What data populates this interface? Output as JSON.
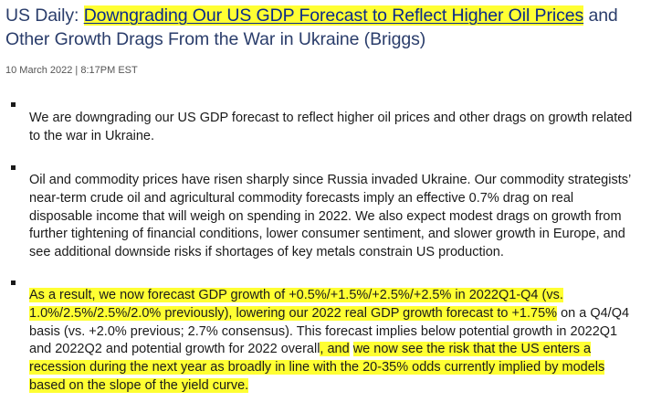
{
  "title": {
    "prefix": "US Daily: ",
    "highlighted": "Downgrading Our US GDP Forecast to Reflect Higher Oil Prices",
    "suffix": " and Other Growth Drags From the War in Ukraine (Briggs)"
  },
  "meta": "10 March 2022 | 8:17PM EST",
  "paragraphs": {
    "p1": "We are downgrading our US GDP forecast to reflect higher oil prices and other drags on growth related to the war in Ukraine.",
    "p2": "Oil and commodity prices have risen sharply since Russia invaded Ukraine. Our commodity strategists’ near-term crude oil and agricultural commodity forecasts imply an effective 0.7% drag on real disposable income that will weigh on spending in 2022. We also expect modest drags on growth from further tightening of financial conditions, lower consumer sentiment, and slower growth in Europe, and see additional downside risks if shortages of key metals constrain US production.",
    "p3_hl1": "As a result, we now forecast GDP growth of +0.5%/+1.5%/+2.5%/+2.5% in 2022Q1-Q4 (vs. 1.0%/2.5%/2.5%/2.0% previously), lowering our 2022 real GDP growth forecast to +1.75%",
    "p3_mid": " on a Q4/Q4 basis (vs. +2.0% previous; 2.7% consensus). This forecast implies below potential growth in 2022Q1 and 2022Q2 and potential growth for 2022 overall",
    "p3_hl2": ", and",
    "p3_space": " ",
    "p3_hl3": "we now see the risk that the US enters a recession during the next year as broadly in line with the 20-35% odds currently implied by models based on the slope of the yield curve."
  }
}
